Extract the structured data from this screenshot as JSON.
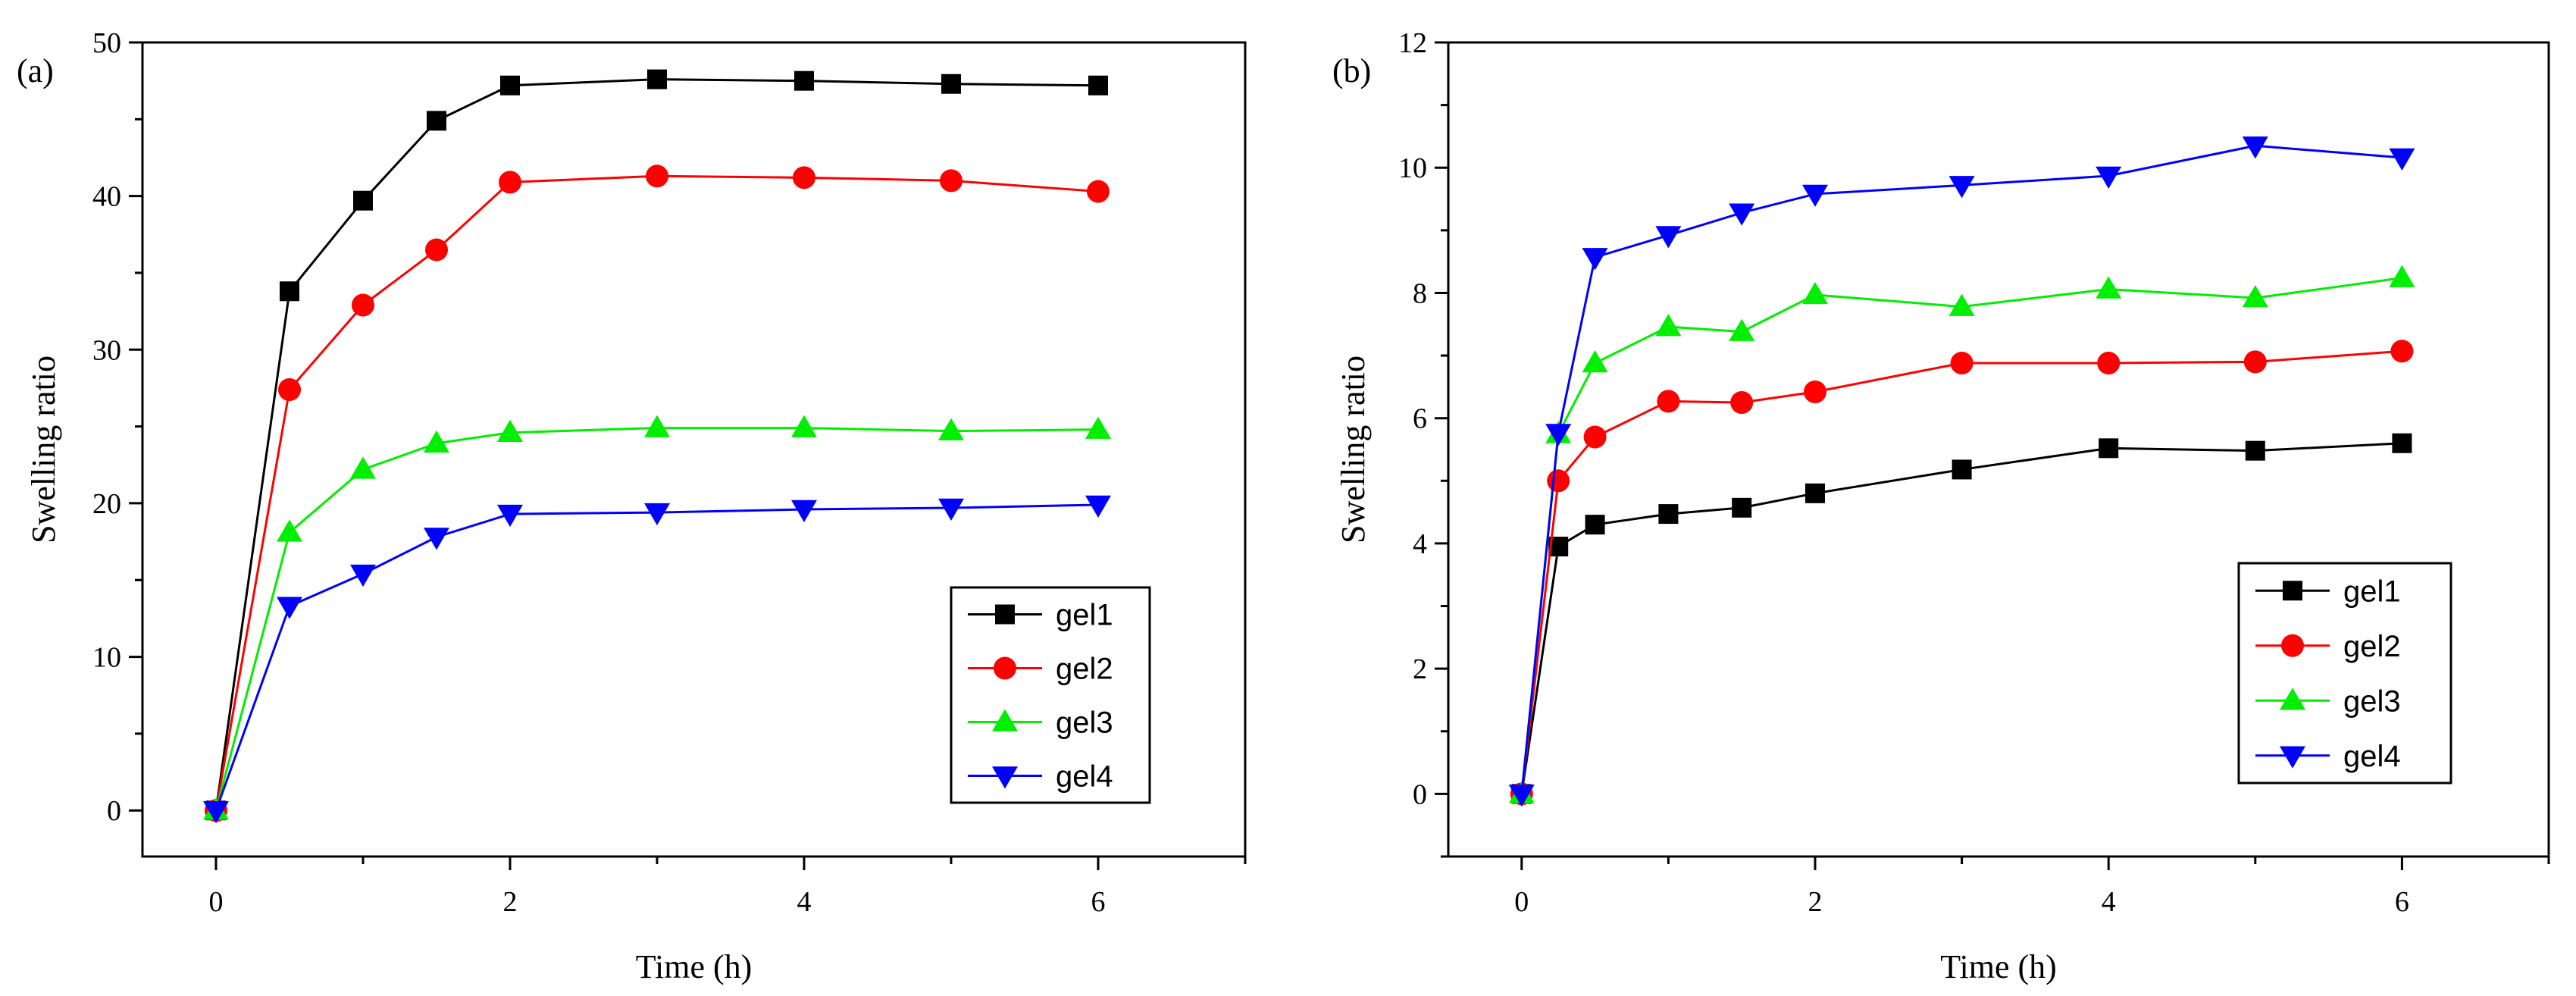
{
  "chart_data": [
    {
      "type": "line",
      "panel_label": "(a)",
      "title": "",
      "xlabel": "Time (h)",
      "ylabel": "Swelling ratio",
      "xlim": [
        -0.5,
        7
      ],
      "ylim": [
        -3,
        50
      ],
      "xticks": [
        0,
        2,
        4,
        6
      ],
      "yticks": [
        0,
        10,
        20,
        30,
        40,
        50
      ],
      "legend_position": "bottom-right",
      "series": [
        {
          "name": "gel1",
          "color": "#000000",
          "marker": "square",
          "x": [
            0,
            0.5,
            1,
            1.5,
            2,
            3,
            4,
            5,
            6
          ],
          "y": [
            0,
            33.8,
            39.7,
            44.9,
            47.2,
            47.6,
            47.5,
            47.3,
            47.2
          ]
        },
        {
          "name": "gel2",
          "color": "#ff0000",
          "marker": "circle",
          "x": [
            0,
            0.5,
            1,
            1.5,
            2,
            3,
            4,
            5,
            6
          ],
          "y": [
            0,
            27.4,
            32.9,
            36.5,
            40.9,
            41.3,
            41.2,
            41.0,
            40.3
          ]
        },
        {
          "name": "gel3",
          "color": "#00ee00",
          "marker": "triangle-up",
          "x": [
            0,
            0.5,
            1,
            1.5,
            2,
            3,
            4,
            5,
            6
          ],
          "y": [
            0,
            18.1,
            22.2,
            23.9,
            24.6,
            24.9,
            24.9,
            24.7,
            24.8
          ]
        },
        {
          "name": "gel4",
          "color": "#0000ff",
          "marker": "triangle-down",
          "x": [
            0,
            0.5,
            1,
            1.5,
            2,
            3,
            4,
            5,
            6
          ],
          "y": [
            0,
            13.3,
            15.4,
            17.8,
            19.3,
            19.4,
            19.6,
            19.7,
            19.9
          ]
        }
      ]
    },
    {
      "type": "line",
      "panel_label": "(b)",
      "title": "",
      "xlabel": "Time (h)",
      "ylabel": "Swelling ratio",
      "xlim": [
        -0.5,
        7
      ],
      "ylim": [
        -1,
        12
      ],
      "xticks": [
        0,
        2,
        4,
        6
      ],
      "yticks": [
        0,
        2,
        4,
        6,
        8,
        10,
        12
      ],
      "legend_position": "bottom-right",
      "series": [
        {
          "name": "gel1",
          "color": "#000000",
          "marker": "square",
          "x": [
            0,
            0.25,
            0.5,
            1,
            1.5,
            2,
            3,
            4,
            5,
            6
          ],
          "y": [
            0,
            3.95,
            4.3,
            4.47,
            4.57,
            4.8,
            5.18,
            5.52,
            5.48,
            5.6
          ]
        },
        {
          "name": "gel2",
          "color": "#ff0000",
          "marker": "circle",
          "x": [
            0,
            0.25,
            0.5,
            1,
            1.5,
            2,
            3,
            4,
            5,
            6
          ],
          "y": [
            0,
            5.0,
            5.7,
            6.27,
            6.25,
            6.42,
            6.88,
            6.88,
            6.9,
            7.07
          ]
        },
        {
          "name": "gel3",
          "color": "#00ee00",
          "marker": "triangle-up",
          "x": [
            0,
            0.25,
            0.5,
            1,
            1.5,
            2,
            3,
            4,
            5,
            6
          ],
          "y": [
            0,
            5.75,
            6.88,
            7.46,
            7.38,
            7.97,
            7.78,
            8.06,
            7.92,
            8.24
          ]
        },
        {
          "name": "gel4",
          "color": "#0000ff",
          "marker": "triangle-down",
          "x": [
            0,
            0.25,
            0.5,
            1,
            1.5,
            2,
            3,
            4,
            5,
            6
          ],
          "y": [
            0,
            5.76,
            8.57,
            8.92,
            9.28,
            9.58,
            9.72,
            9.87,
            10.35,
            10.16
          ]
        }
      ]
    }
  ]
}
